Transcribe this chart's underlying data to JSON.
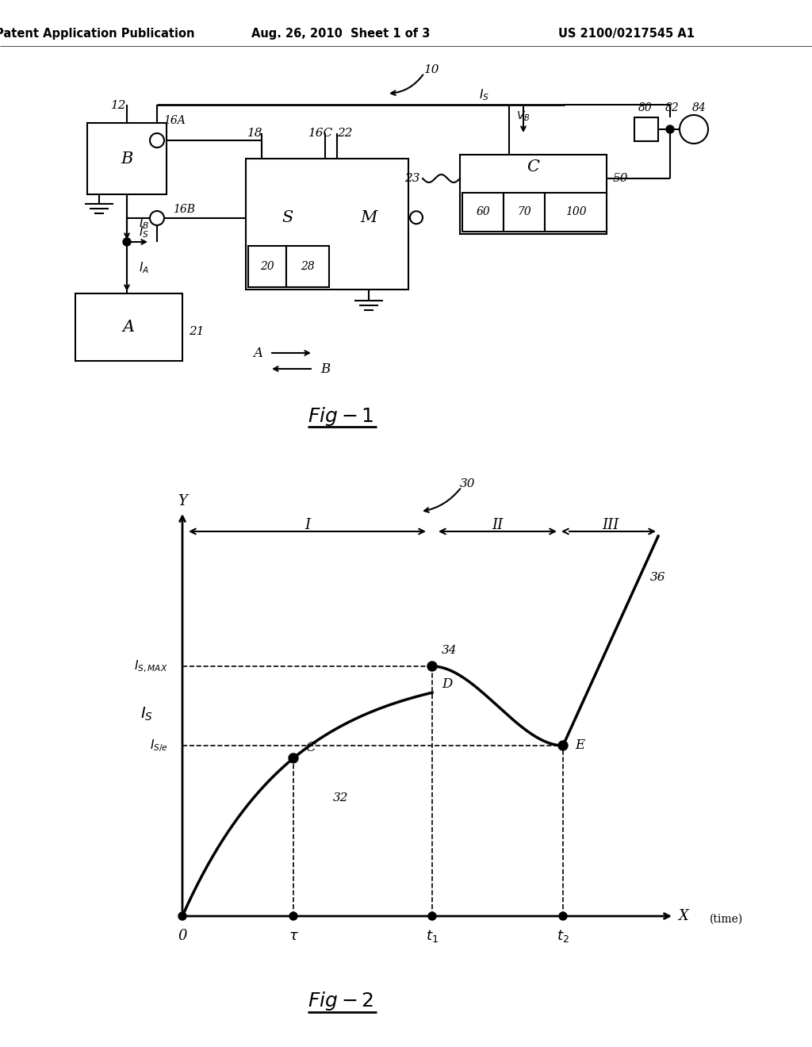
{
  "bg_color": "#ffffff",
  "header_left": "Patent Application Publication",
  "header_mid": "Aug. 26, 2010  Sheet 1 of 3",
  "header_right": "US 2100/0217545 A1"
}
